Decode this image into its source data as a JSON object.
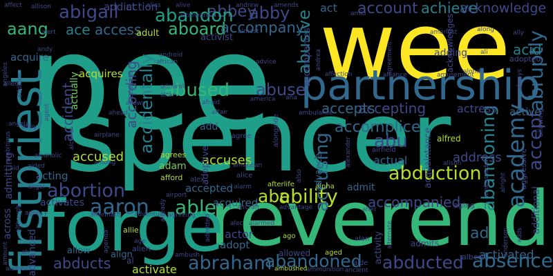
{
  "colors": {
    "background": "#000000",
    "palette": [
      "#fde725",
      "#b5de2b",
      "#6ece58",
      "#35b779",
      "#1f9e89",
      "#26828e",
      "#31688e",
      "#3e4989",
      "#482878",
      "#440154"
    ]
  },
  "words": [
    {
      "t": "pee",
      "c": "#1f9e89"
    },
    {
      "t": "spencer",
      "c": "#1f9e89"
    },
    {
      "t": "wee",
      "c": "#fde725"
    },
    {
      "t": "reverend",
      "c": "#35b779"
    },
    {
      "t": "forge",
      "c": "#1f9e89"
    },
    {
      "t": "partnership",
      "c": "#31688e"
    },
    {
      "t": "firstpriest",
      "c": "#26828e"
    },
    {
      "t": "academy",
      "c": "#31688e"
    },
    {
      "t": "abduction",
      "c": "#b5de2b"
    },
    {
      "t": "abraham",
      "c": "#31688e"
    },
    {
      "t": "absence",
      "c": "#31688e"
    },
    {
      "t": "abducted",
      "c": "#3e4989"
    },
    {
      "t": "abandoned",
      "c": "#31688e"
    },
    {
      "t": "ability",
      "c": "#b5de2b"
    },
    {
      "t": "abe",
      "c": "#b5de2b"
    },
    {
      "t": "able",
      "c": "#35b779"
    },
    {
      "t": "aaron",
      "c": "#31688e"
    },
    {
      "t": "abortion",
      "c": "#3e4989"
    },
    {
      "t": "abuse",
      "c": "#3e4989"
    },
    {
      "t": "abused",
      "c": "#35b779"
    },
    {
      "t": "accepting",
      "c": "#3e4989"
    },
    {
      "t": "accepts",
      "c": "#31688e"
    },
    {
      "t": "abu",
      "c": "#3e4989"
    },
    {
      "t": "accomplice",
      "c": "#31688e"
    },
    {
      "t": "abandoning",
      "c": "#26828e"
    },
    {
      "t": "accept",
      "c": "#3e4989"
    },
    {
      "t": "abruptly",
      "c": "#31688e"
    },
    {
      "t": "acid",
      "c": "#26828e"
    },
    {
      "t": "accidentally",
      "c": "#26828e"
    },
    {
      "t": "accusing",
      "c": "#31688e"
    },
    {
      "t": "abusive",
      "c": "#26828e"
    },
    {
      "t": "account",
      "c": "#3e4989"
    },
    {
      "t": "achieve",
      "c": "#26828e"
    },
    {
      "t": "acknowledge",
      "c": "#3e4989"
    },
    {
      "t": "abby",
      "c": "#3e4989"
    },
    {
      "t": "abbey",
      "c": "#3e4989"
    },
    {
      "t": "abigail",
      "c": "#3e4989"
    },
    {
      "t": "abandon",
      "c": "#1f9e89"
    },
    {
      "t": "aboard",
      "c": "#35b779"
    },
    {
      "t": "accompany",
      "c": "#31688e"
    },
    {
      "t": "ace",
      "c": "#26828e"
    },
    {
      "t": "access",
      "c": "#31688e"
    },
    {
      "t": "aang",
      "c": "#35b779"
    },
    {
      "t": "accident",
      "c": "#3e4989"
    },
    {
      "t": "according",
      "c": "#3e4989"
    },
    {
      "t": "accompanied",
      "c": "#3e4989"
    },
    {
      "t": "accused",
      "c": "#b5de2b"
    },
    {
      "t": "accuses",
      "c": "#b5de2b"
    },
    {
      "t": "accepted",
      "c": "#31688e"
    },
    {
      "t": "acquired",
      "c": "#31688e"
    },
    {
      "t": "act",
      "c": "#31688e"
    },
    {
      "t": "actress",
      "c": "#3e4989"
    },
    {
      "t": "active",
      "c": "#31688e"
    },
    {
      "t": "address",
      "c": "#3e4989"
    },
    {
      "t": "actual",
      "c": "#31688e"
    },
    {
      "t": "acting",
      "c": "#31688e"
    },
    {
      "t": "abducts",
      "c": "#3e4989"
    },
    {
      "t": "activated",
      "c": "#31688e"
    },
    {
      "t": "activate",
      "c": "#b5de2b"
    },
    {
      "t": "advanced",
      "c": "#3e4989"
    },
    {
      "t": "actor",
      "c": "#3e4989"
    },
    {
      "t": "adopt",
      "c": "#31688e"
    },
    {
      "t": "adam",
      "c": "#6ece58"
    },
    {
      "t": "afford",
      "c": "#b5de2b"
    },
    {
      "t": "agrees",
      "c": "#b5de2b"
    },
    {
      "t": "ad",
      "c": "#31688e"
    },
    {
      "t": "additional",
      "c": "#3e4989"
    },
    {
      "t": "adding",
      "c": "#3e4989"
    },
    {
      "t": "acquire",
      "c": "#31688e"
    },
    {
      "t": "actually",
      "c": "#6ece58"
    },
    {
      "t": "acquires",
      "c": "#b5de2b"
    },
    {
      "t": "addict",
      "c": "#3e4989"
    },
    {
      "t": "action",
      "c": "#3e4989"
    },
    {
      "t": "adult",
      "c": "#b5de2b"
    },
    {
      "t": "activist",
      "c": "#3e4989"
    },
    {
      "t": "add",
      "c": "#31688e"
    },
    {
      "t": "admit",
      "c": "#31688e"
    },
    {
      "t": "alfred",
      "c": "#b5de2b"
    },
    {
      "t": "alpha",
      "c": "#b5de2b"
    },
    {
      "t": "adoptive",
      "c": "#3e4989"
    },
    {
      "t": "advance",
      "c": "#31688e"
    },
    {
      "t": "accompanies",
      "c": "#3e4989"
    },
    {
      "t": "acknowledges",
      "c": "#3e4989"
    },
    {
      "t": "across",
      "c": "#3e4989"
    },
    {
      "t": "admitting",
      "c": "#3e4989"
    },
    {
      "t": "activates",
      "c": "#3e4989"
    },
    {
      "t": "activity",
      "c": "#3e4989"
    },
    {
      "t": "admits",
      "c": "#3e4989"
    },
    {
      "t": "aging",
      "c": "#3e4989"
    },
    {
      "t": "albert",
      "c": "#3e4989"
    },
    {
      "t": "allowed",
      "c": "#3e4989"
    },
    {
      "t": "allow",
      "c": "#31688e"
    },
    {
      "t": "align",
      "c": "#31688e"
    },
    {
      "t": "al",
      "c": "#3e4989"
    },
    {
      "t": "alien",
      "c": "#3e4989"
    },
    {
      "t": "allie",
      "c": "#b5de2b"
    },
    {
      "t": "ago",
      "c": "#b5de2b"
    },
    {
      "t": "aged",
      "c": "#b5de2b"
    },
    {
      "t": "alan",
      "c": "#3e4989"
    },
    {
      "t": "aide",
      "c": "#3e4989"
    },
    {
      "t": "ancient",
      "c": "#3e4989"
    },
    {
      "t": "ambushed",
      "c": "#b5de2b"
    },
    {
      "t": "ammunition",
      "c": "#3e4989"
    },
    {
      "t": "afterlife",
      "c": "#b5de2b"
    },
    {
      "t": "alarm",
      "c": "#3e4989"
    },
    {
      "t": "alex",
      "c": "#3e4989"
    },
    {
      "t": "alice",
      "c": "#3e4989"
    },
    {
      "t": "agree",
      "c": "#3e4989"
    },
    {
      "t": "alongside",
      "c": "#3e4989"
    },
    {
      "t": "also",
      "c": "#3e4989"
    },
    {
      "t": "airfield",
      "c": "#3e4989"
    },
    {
      "t": "acquaintance",
      "c": "#3e4989"
    },
    {
      "t": "alison",
      "c": "#3e4989"
    },
    {
      "t": "adopted",
      "c": "#3e4989"
    },
    {
      "t": "alone",
      "c": "#3e4989"
    },
    {
      "t": "allowing",
      "c": "#3e4989"
    },
    {
      "t": "aggressive",
      "c": "#3e4989"
    },
    {
      "t": "adds",
      "c": "#3e4989"
    },
    {
      "t": "amount",
      "c": "#3e4989"
    },
    {
      "t": "alamein",
      "c": "#3e4989"
    },
    {
      "t": "ah",
      "c": "#3e4989"
    },
    {
      "t": "agency",
      "c": "#3e4989"
    },
    {
      "t": "angel",
      "c": "#3e4989"
    },
    {
      "t": "aid",
      "c": "#3e4989"
    },
    {
      "t": "aided",
      "c": "#3e4989"
    },
    {
      "t": "alcoholic",
      "c": "#3e4989"
    },
    {
      "t": "alley",
      "c": "#3e4989"
    },
    {
      "t": "angela",
      "c": "#3e4989"
    },
    {
      "t": "allen",
      "c": "#3e4989"
    },
    {
      "t": "angeles",
      "c": "#3e4989"
    },
    {
      "t": "andy",
      "c": "#3e4989"
    },
    {
      "t": "alert",
      "c": "#3e4989"
    },
    {
      "t": "affect",
      "c": "#3e4989"
    },
    {
      "t": "allison",
      "c": "#3e4989"
    },
    {
      "t": "alias",
      "c": "#3e4989"
    },
    {
      "t": "alive",
      "c": "#3e4989"
    },
    {
      "t": "afterward",
      "c": "#3e4989"
    },
    {
      "t": "andrew",
      "c": "#3e4989"
    },
    {
      "t": "amends",
      "c": "#3e4989"
    },
    {
      "t": "almost",
      "c": "#3e4989"
    },
    {
      "t": "amongst",
      "c": "#3e4989"
    },
    {
      "t": "along",
      "c": "#3e4989"
    },
    {
      "t": "ally",
      "c": "#3e4989"
    },
    {
      "t": "ali",
      "c": "#3e4989"
    },
    {
      "t": "android",
      "c": "#3e4989"
    },
    {
      "t": "african",
      "c": "#3e4989"
    },
    {
      "t": "advice",
      "c": "#3e4989"
    },
    {
      "t": "andrea",
      "c": "#3e4989"
    },
    {
      "t": "affection",
      "c": "#3e4989"
    },
    {
      "t": "alliance",
      "c": "#3e4989"
    },
    {
      "t": "amusement",
      "c": "#3e4989"
    },
    {
      "t": "agreement",
      "c": "#3e4989"
    },
    {
      "t": "always",
      "c": "#3e4989"
    },
    {
      "t": "admiral",
      "c": "#3e4989"
    },
    {
      "t": "afterwards",
      "c": "#3e4989"
    },
    {
      "t": "allows",
      "c": "#3e4989"
    },
    {
      "t": "altar",
      "c": "#3e4989"
    },
    {
      "t": "afraid",
      "c": "#3e4989"
    },
    {
      "t": "america",
      "c": "#3e4989"
    },
    {
      "t": "ana",
      "c": "#3e4989"
    },
    {
      "t": "ahead",
      "c": "#3e4989"
    },
    {
      "t": "affair",
      "c": "#3e4989"
    },
    {
      "t": "ambulance",
      "c": "#3e4989"
    },
    {
      "t": "alcohol",
      "c": "#3e4989"
    },
    {
      "t": "airplane",
      "c": "#3e4989"
    },
    {
      "t": "among",
      "c": "#3e4989"
    },
    {
      "t": "american",
      "c": "#3e4989"
    },
    {
      "t": "alexander",
      "c": "#3e4989"
    },
    {
      "t": "ambassador",
      "c": "#3e4989"
    },
    {
      "t": "alright",
      "c": "#3e4989"
    },
    {
      "t": "airport",
      "c": "#3e4989"
    },
    {
      "t": "aircraft",
      "c": "#3e4989"
    },
    {
      "t": "advantage",
      "c": "#3e4989"
    },
    {
      "t": "alter",
      "c": "#3e4989"
    },
    {
      "t": "alternate",
      "c": "#3e4989"
    },
    {
      "t": "already",
      "c": "#3e4989"
    },
    {
      "t": "aftermath",
      "c": "#3e4989"
    },
    {
      "t": "adventure",
      "c": "#3e4989"
    },
    {
      "t": "agreeing",
      "c": "#3e4989"
    },
    {
      "t": "alec",
      "c": "#3e4989"
    },
    {
      "t": "age",
      "c": "#3e4989"
    },
    {
      "t": "ambush",
      "c": "#3e4989"
    },
    {
      "t": "anderson",
      "c": "#3e4989"
    },
    {
      "t": "amid",
      "c": "#3e4989"
    },
    {
      "t": "although",
      "c": "#3e4989"
    },
    {
      "t": "addition",
      "c": "#3e4989"
    },
    {
      "t": "ambitious",
      "c": "#3e4989"
    },
    {
      "t": "agent",
      "c": "#3e4989"
    },
    {
      "t": "admitted",
      "c": "#3e4989"
    },
    {
      "t": "agenda",
      "c": "#3e4989"
    },
    {
      "t": "alarmed",
      "c": "#3e4989"
    }
  ]
}
